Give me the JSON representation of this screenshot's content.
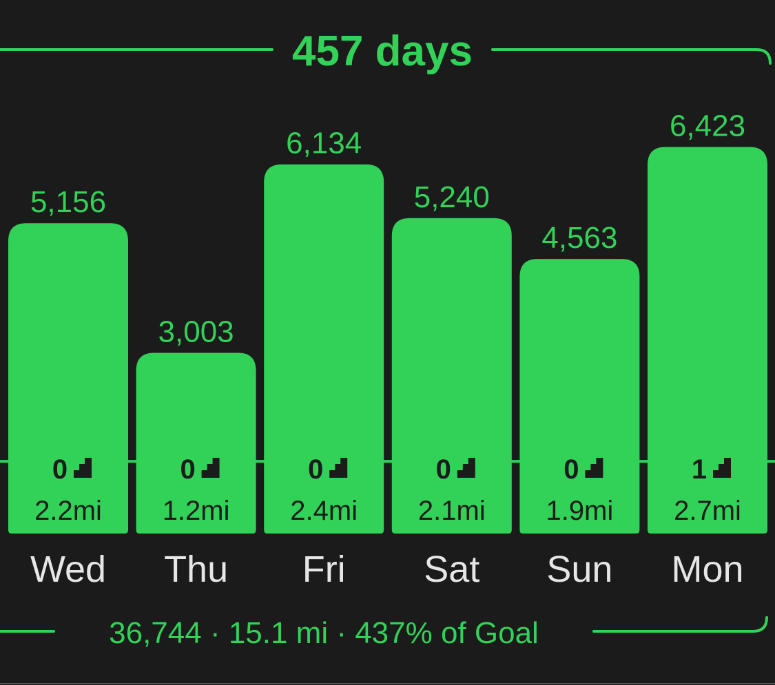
{
  "chart_data": {
    "type": "bar",
    "title": "457 days",
    "footer": "36,744 · 15.1 mi · 437% of Goal",
    "categories": [
      "Wed",
      "Thu",
      "Fri",
      "Sat",
      "Sun",
      "Mon"
    ],
    "values": [
      5156,
      3003,
      6134,
      5240,
      4563,
      6423
    ],
    "value_labels": [
      "5,156",
      "3,003",
      "6,134",
      "5,240",
      "4,563",
      "6,423"
    ],
    "flights": [
      0,
      0,
      0,
      0,
      0,
      1
    ],
    "distances": [
      "2.2mi",
      "1.2mi",
      "2.4mi",
      "2.1mi",
      "1.9mi",
      "2.7mi"
    ],
    "goal_line": 1200,
    "color": "#32d158",
    "ylim": [
      0,
      7000
    ]
  }
}
